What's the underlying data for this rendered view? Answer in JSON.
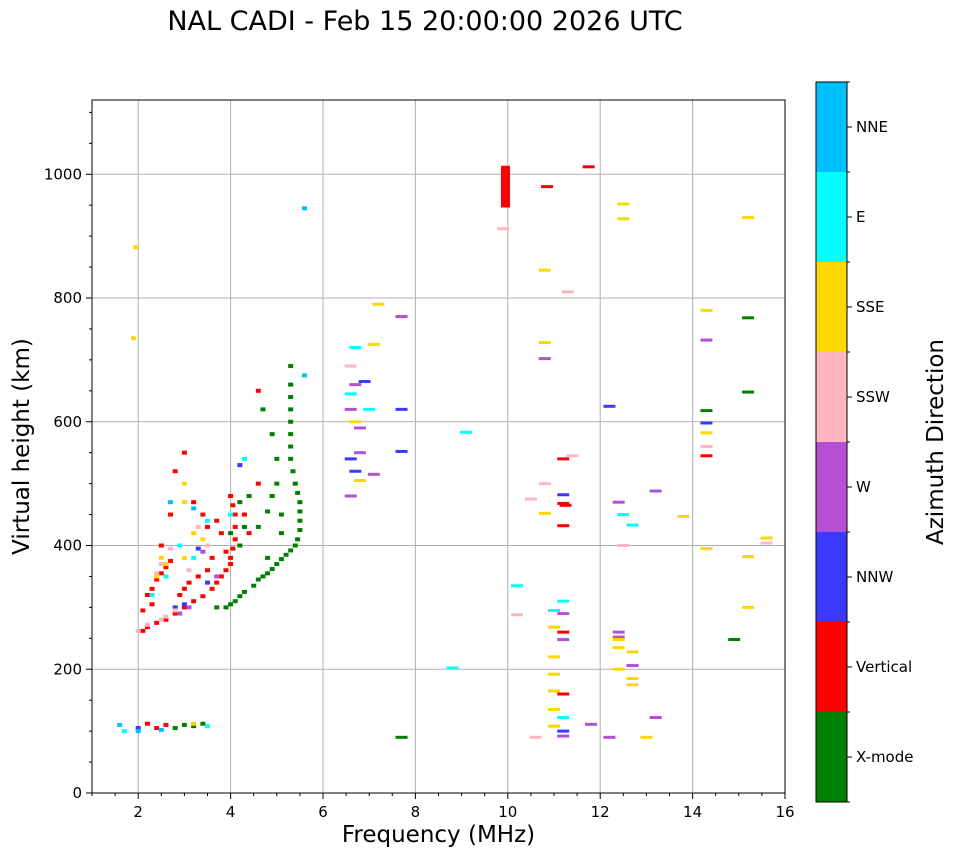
{
  "chart_data": {
    "type": "scatter",
    "title": "NAL CADI - Feb 15 20:00:00 2026 UTC",
    "xlabel": "Frequency (MHz)",
    "ylabel": "Virtual height (km)",
    "xlim": [
      1.0,
      16.0
    ],
    "ylim": [
      0,
      1120
    ],
    "xticks": [
      2,
      4,
      6,
      8,
      10,
      12,
      14,
      16
    ],
    "yticks": [
      0,
      200,
      400,
      600,
      800,
      1000
    ],
    "grid": true,
    "colorbar": {
      "label": "Azimuth Direction",
      "categories": [
        {
          "name": "X-mode",
          "color": "#008000"
        },
        {
          "name": "Vertical",
          "color": "#ff0000"
        },
        {
          "name": "NNW",
          "color": "#3a3aff"
        },
        {
          "name": "W",
          "color": "#b44fd6"
        },
        {
          "name": "SSW",
          "color": "#ffb6c1"
        },
        {
          "name": "SSE",
          "color": "#ffd700"
        },
        {
          "name": "E",
          "color": "#00ffff"
        },
        {
          "name": "NNE",
          "color": "#00bfff"
        }
      ]
    },
    "traces": [
      {
        "category": "X-mode",
        "points": [
          [
            3.9,
            300
          ],
          [
            4.0,
            305
          ],
          [
            4.1,
            310
          ],
          [
            4.2,
            318
          ],
          [
            4.3,
            325
          ],
          [
            4.5,
            335
          ],
          [
            4.6,
            345
          ],
          [
            4.7,
            350
          ],
          [
            4.8,
            355
          ],
          [
            4.9,
            362
          ],
          [
            5.0,
            370
          ],
          [
            5.1,
            378
          ],
          [
            5.2,
            385
          ],
          [
            5.3,
            392
          ],
          [
            5.4,
            400
          ],
          [
            5.45,
            410
          ],
          [
            5.5,
            425
          ],
          [
            5.5,
            440
          ],
          [
            5.5,
            455
          ],
          [
            5.5,
            470
          ],
          [
            5.45,
            485
          ],
          [
            5.4,
            500
          ],
          [
            5.35,
            520
          ],
          [
            5.3,
            540
          ],
          [
            5.3,
            560
          ],
          [
            5.3,
            580
          ],
          [
            5.3,
            600
          ],
          [
            5.3,
            620
          ],
          [
            5.3,
            640
          ],
          [
            5.3,
            660
          ],
          [
            5.3,
            690
          ],
          [
            4.8,
            380
          ],
          [
            4.6,
            430
          ],
          [
            4.8,
            455
          ],
          [
            4.9,
            480
          ],
          [
            5.0,
            500
          ],
          [
            4.2,
            470
          ],
          [
            4.3,
            430
          ],
          [
            4.2,
            400
          ],
          [
            3.7,
            300
          ],
          [
            4.4,
            480
          ],
          [
            5.1,
            420
          ],
          [
            5.1,
            450
          ],
          [
            4.0,
            420
          ],
          [
            4.7,
            620
          ],
          [
            4.9,
            580
          ],
          [
            5.0,
            540
          ],
          [
            3.0,
            110
          ],
          [
            3.2,
            108
          ],
          [
            3.4,
            112
          ],
          [
            2.8,
            105
          ],
          [
            7.7,
            90
          ],
          [
            14.3,
            618
          ],
          [
            15.2,
            648
          ],
          [
            15.2,
            768
          ],
          [
            14.9,
            248
          ]
        ]
      },
      {
        "category": "Vertical",
        "points": [
          [
            2.1,
            262
          ],
          [
            2.2,
            268
          ],
          [
            2.4,
            275
          ],
          [
            2.6,
            280
          ],
          [
            2.8,
            290
          ],
          [
            3.0,
            300
          ],
          [
            3.2,
            310
          ],
          [
            3.4,
            318
          ],
          [
            3.6,
            330
          ],
          [
            3.7,
            340
          ],
          [
            3.8,
            350
          ],
          [
            3.9,
            360
          ],
          [
            4.0,
            370
          ],
          [
            4.0,
            380
          ],
          [
            4.05,
            395
          ],
          [
            4.1,
            410
          ],
          [
            4.1,
            430
          ],
          [
            4.1,
            450
          ],
          [
            4.05,
            465
          ],
          [
            4.0,
            480
          ],
          [
            3.9,
            390
          ],
          [
            3.8,
            420
          ],
          [
            3.7,
            440
          ],
          [
            3.6,
            380
          ],
          [
            3.5,
            360
          ],
          [
            3.3,
            350
          ],
          [
            3.1,
            340
          ],
          [
            3.0,
            330
          ],
          [
            2.9,
            320
          ],
          [
            2.3,
            330
          ],
          [
            2.4,
            345
          ],
          [
            2.5,
            355
          ],
          [
            2.6,
            365
          ],
          [
            2.7,
            375
          ],
          [
            2.2,
            320
          ],
          [
            2.3,
            305
          ],
          [
            2.5,
            400
          ],
          [
            2.7,
            450
          ],
          [
            2.8,
            520
          ],
          [
            3.0,
            550
          ],
          [
            3.2,
            470
          ],
          [
            3.4,
            450
          ],
          [
            3.5,
            430
          ],
          [
            2.1,
            295
          ],
          [
            4.3,
            450
          ],
          [
            4.4,
            420
          ],
          [
            4.6,
            500
          ],
          [
            4.6,
            650
          ],
          [
            2.6,
            110
          ],
          [
            2.4,
            105
          ],
          [
            2.2,
            112
          ],
          [
            9.95,
            1000
          ],
          [
            9.95,
            980
          ],
          [
            9.95,
            960
          ],
          [
            10.85,
            980
          ],
          [
            11.75,
            1012
          ],
          [
            11.2,
            468
          ],
          [
            11.25,
            465
          ],
          [
            11.2,
            432
          ],
          [
            11.2,
            540
          ],
          [
            11.2,
            260
          ],
          [
            11.2,
            160
          ],
          [
            14.3,
            545
          ]
        ]
      },
      {
        "category": "NNW",
        "points": [
          [
            2.8,
            300
          ],
          [
            3.0,
            305
          ],
          [
            3.3,
            395
          ],
          [
            3.5,
            340
          ],
          [
            4.2,
            530
          ],
          [
            6.6,
            540
          ],
          [
            6.7,
            520
          ],
          [
            6.9,
            665
          ],
          [
            7.7,
            552
          ],
          [
            7.7,
            620
          ],
          [
            11.2,
            482
          ],
          [
            12.2,
            625
          ],
          [
            14.3,
            598
          ],
          [
            11.2,
            100
          ],
          [
            2.0,
            105
          ]
        ]
      },
      {
        "category": "W",
        "points": [
          [
            2.9,
            290
          ],
          [
            3.1,
            300
          ],
          [
            3.4,
            390
          ],
          [
            3.7,
            350
          ],
          [
            6.6,
            620
          ],
          [
            6.8,
            590
          ],
          [
            6.8,
            550
          ],
          [
            6.6,
            480
          ],
          [
            6.7,
            660
          ],
          [
            7.7,
            770
          ],
          [
            7.1,
            515
          ],
          [
            10.8,
            702
          ],
          [
            11.2,
            290
          ],
          [
            11.2,
            248
          ],
          [
            12.4,
            252
          ],
          [
            12.4,
            260
          ],
          [
            12.7,
            206
          ],
          [
            13.2,
            488
          ],
          [
            12.4,
            470
          ],
          [
            13.2,
            122
          ],
          [
            12.2,
            90
          ],
          [
            11.2,
            92
          ],
          [
            11.8,
            111
          ],
          [
            14.3,
            732
          ]
        ]
      },
      {
        "category": "SSW",
        "points": [
          [
            2.0,
            262
          ],
          [
            2.2,
            272
          ],
          [
            2.5,
            280
          ],
          [
            2.6,
            285
          ],
          [
            2.8,
            295
          ],
          [
            2.4,
            355
          ],
          [
            2.5,
            370
          ],
          [
            2.7,
            395
          ],
          [
            3.1,
            360
          ],
          [
            3.3,
            430
          ],
          [
            3.5,
            400
          ],
          [
            6.6,
            690
          ],
          [
            10.8,
            500
          ],
          [
            11.4,
            545
          ],
          [
            10.5,
            475
          ],
          [
            11.3,
            810
          ],
          [
            12.5,
            400
          ],
          [
            9.9,
            912
          ],
          [
            10.2,
            288
          ],
          [
            10.6,
            90
          ],
          [
            15.6,
            404
          ],
          [
            14.3,
            560
          ]
        ]
      },
      {
        "category": "SSE",
        "points": [
          [
            2.4,
            350
          ],
          [
            2.6,
            370
          ],
          [
            3.0,
            380
          ],
          [
            3.0,
            470
          ],
          [
            3.2,
            420
          ],
          [
            3.0,
            500
          ],
          [
            2.5,
            380
          ],
          [
            3.4,
            410
          ],
          [
            1.9,
            735
          ],
          [
            1.95,
            882
          ],
          [
            6.7,
            600
          ],
          [
            6.8,
            505
          ],
          [
            7.1,
            725
          ],
          [
            7.2,
            790
          ],
          [
            10.8,
            845
          ],
          [
            10.8,
            728
          ],
          [
            10.8,
            452
          ],
          [
            11.0,
            268
          ],
          [
            11.0,
            220
          ],
          [
            11.0,
            192
          ],
          [
            11.0,
            165
          ],
          [
            11.0,
            135
          ],
          [
            11.0,
            108
          ],
          [
            12.5,
            952
          ],
          [
            12.5,
            928
          ],
          [
            12.4,
            248
          ],
          [
            12.4,
            235
          ],
          [
            12.4,
            200
          ],
          [
            12.7,
            228
          ],
          [
            12.7,
            185
          ],
          [
            12.7,
            175
          ],
          [
            13.0,
            90
          ],
          [
            13.8,
            447
          ],
          [
            14.3,
            780
          ],
          [
            14.3,
            582
          ],
          [
            14.3,
            395
          ],
          [
            15.2,
            930
          ],
          [
            15.2,
            382
          ],
          [
            15.2,
            300
          ],
          [
            15.6,
            412
          ],
          [
            3.2,
            112
          ]
        ]
      },
      {
        "category": "E",
        "points": [
          [
            2.3,
            320
          ],
          [
            2.6,
            350
          ],
          [
            2.9,
            400
          ],
          [
            3.2,
            380
          ],
          [
            3.5,
            440
          ],
          [
            4.0,
            450
          ],
          [
            4.3,
            540
          ],
          [
            6.7,
            720
          ],
          [
            6.6,
            645
          ],
          [
            7.0,
            620
          ],
          [
            9.1,
            583
          ],
          [
            8.8,
            202
          ],
          [
            10.2,
            335
          ],
          [
            11.0,
            295
          ],
          [
            11.2,
            122
          ],
          [
            12.5,
            450
          ],
          [
            12.7,
            433
          ],
          [
            11.2,
            310
          ],
          [
            1.7,
            100
          ],
          [
            3.5,
            108
          ]
        ]
      },
      {
        "category": "NNE",
        "points": [
          [
            2.7,
            470
          ],
          [
            3.2,
            460
          ],
          [
            5.6,
            945
          ],
          [
            5.6,
            675
          ],
          [
            2.0,
            100
          ],
          [
            2.5,
            102
          ],
          [
            1.6,
            110
          ]
        ]
      }
    ]
  }
}
